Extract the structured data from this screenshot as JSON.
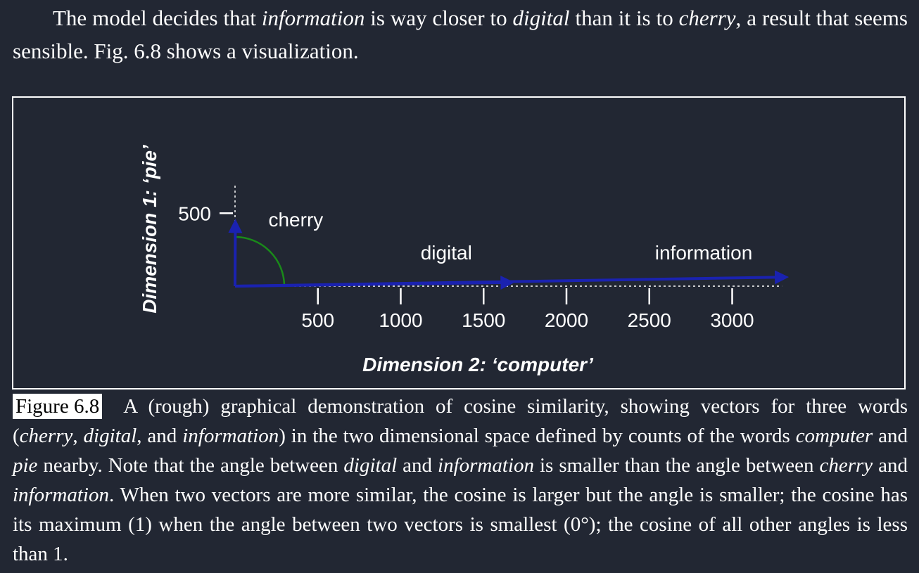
{
  "intro": {
    "p1": "The model decides that ",
    "w1": "information",
    "p2": " is way closer to ",
    "w2": "digital",
    "p3": " than it is to ",
    "w3": "cherry",
    "p4": ", a result that seems sensible. Fig. 6.8 shows a visualization."
  },
  "chart_data": {
    "type": "vector",
    "xlabel": "Dimension 2: ‘computer’",
    "ylabel": "Dimension 1: ‘pie’",
    "xticks": [
      500,
      1000,
      1500,
      2000,
      2500,
      3000
    ],
    "yticks": [
      500
    ],
    "xlim": [
      0,
      3300
    ],
    "ylim": [
      0,
      700
    ],
    "vectors": [
      {
        "label": "cherry",
        "x": 2,
        "y": 442
      },
      {
        "label": "digital",
        "x": 1670,
        "y": 25
      },
      {
        "label": "information",
        "x": 3325,
        "y": 62
      }
    ],
    "colors": {
      "vector": "#1a22b0",
      "angle": "#1a8a1a",
      "axis": "#ffffff",
      "background": "#222733"
    }
  },
  "caption": {
    "label": "Figure 6.8",
    "t1": "A (rough) graphical demonstration of cosine similarity, showing vectors for three words (",
    "w1": "cherry",
    "t2": ", ",
    "w2": "digital",
    "t3": ", and ",
    "w3": "information",
    "t4": ") in the two dimensional space defined by counts of the words ",
    "w4": "computer",
    "t5": " and ",
    "w5": "pie",
    "t6": " nearby. Note that the angle between ",
    "w6": "digital",
    "t7": " and ",
    "w7": "information",
    "t8": " is smaller than the angle between ",
    "w8": "cherry",
    "t9": " and ",
    "w9": "information",
    "t10": ". When two vectors are more similar, the cosine is larger but the angle is smaller; the cosine has its maximum (1) when the angle between two vectors is smallest (0°); the cosine of all other angles is less than 1."
  }
}
